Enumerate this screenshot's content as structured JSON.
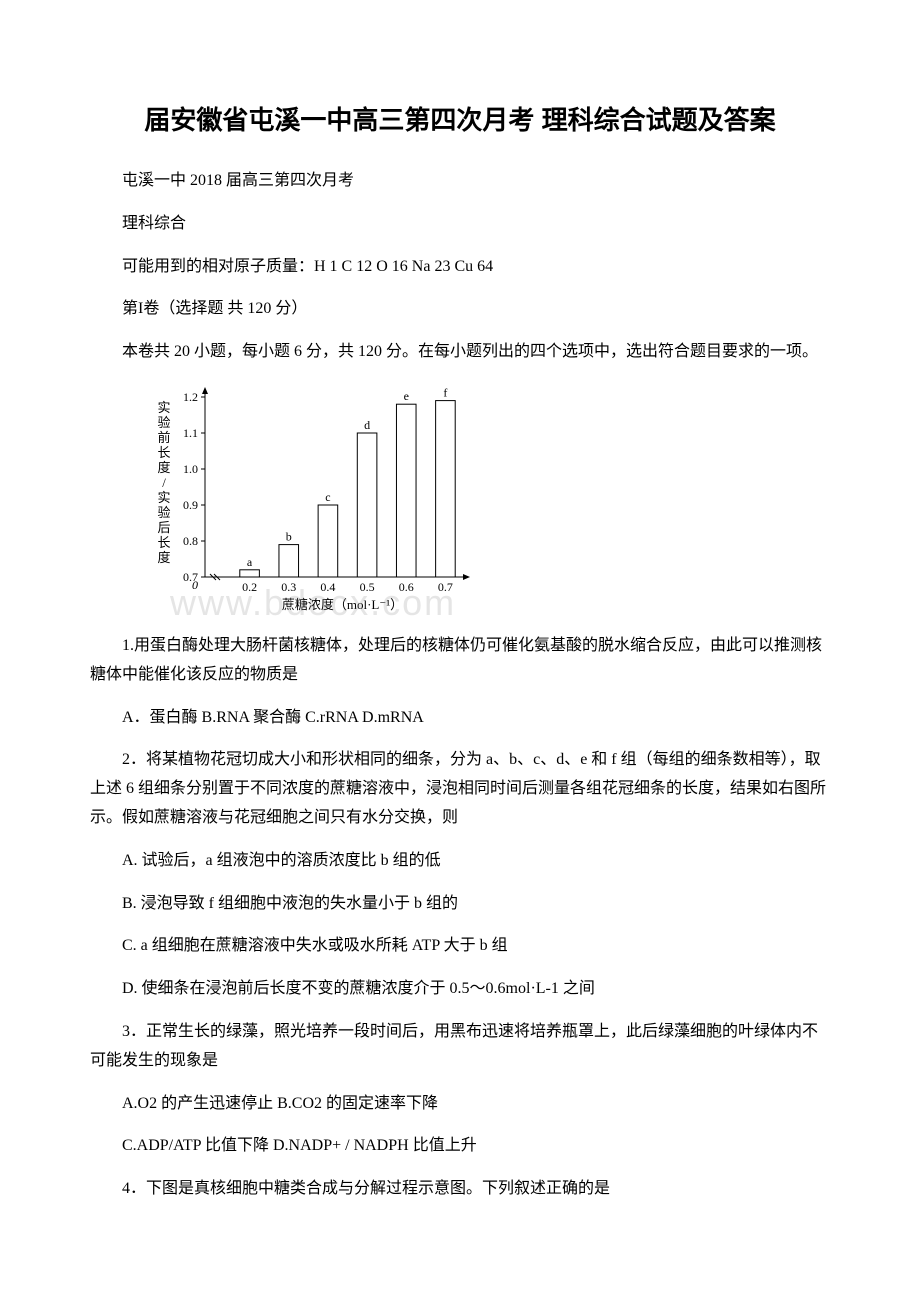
{
  "title": "届安徽省屯溪一中高三第四次月考 理科综合试题及答案",
  "header": {
    "line1": "屯溪一中 2018 届高三第四次月考",
    "line2": "理科综合",
    "line3": "可能用到的相对原子质量：H 1 C 12 O 16 Na 23 Cu 64",
    "line4": "第I卷（选择题 共 120 分）",
    "line5": "本卷共 20 小题，每小题 6 分，共 120 分。在每小题列出的四个选项中，选出符合题目要求的一项。"
  },
  "chart": {
    "type": "bar",
    "categories": [
      "0.2",
      "0.3",
      "0.4",
      "0.5",
      "0.6",
      "0.7"
    ],
    "bar_labels": [
      "a",
      "b",
      "c",
      "d",
      "e",
      "f"
    ],
    "values": [
      0.72,
      0.79,
      0.9,
      1.1,
      1.18,
      1.19
    ],
    "ylim": [
      0.7,
      1.2
    ],
    "ytick_step": 0.1,
    "yticks": [
      "0.7",
      "0.8",
      "0.9",
      "1.0",
      "1.1",
      "1.2"
    ],
    "ylabel": "实验前长度/实验后长度",
    "xlabel": "蔗糖浓度（mol·L⁻¹）",
    "bar_fill": "#ffffff",
    "bar_stroke": "#000000",
    "axis_color": "#000000",
    "background_color": "#ffffff",
    "bar_width": 0.5,
    "font_size": 12,
    "axis_break": true
  },
  "watermark": "www.bdocx.com",
  "questions": {
    "q1": {
      "stem": "1.用蛋白酶处理大肠杆菌核糖体，处理后的核糖体仍可催化氨基酸的脱水缩合反应，由此可以推测核糖体中能催化该反应的物质是",
      "options": "A．蛋白酶 B.RNA 聚合酶 C.rRNA D.mRNA"
    },
    "q2": {
      "stem": "2．将某植物花冠切成大小和形状相同的细条，分为 a、b、c、d、e 和 f 组（每组的细条数相等），取上述 6 组细条分别置于不同浓度的蔗糖溶液中，浸泡相同时间后测量各组花冠细条的长度，结果如右图所示。假如蔗糖溶液与花冠细胞之间只有水分交换，则",
      "opt_a": "A. 试验后，a 组液泡中的溶质浓度比 b 组的低",
      "opt_b": "B. 浸泡导致 f 组细胞中液泡的失水量小于 b 组的",
      "opt_c": "C. a 组细胞在蔗糖溶液中失水或吸水所耗 ATP 大于 b 组",
      "opt_d": "D. 使细条在浸泡前后长度不变的蔗糖浓度介于 0.5～0.6mol·L-1 之间"
    },
    "q3": {
      "stem": "3．正常生长的绿藻，照光培养一段时间后，用黑布迅速将培养瓶罩上，此后绿藻细胞的叶绿体内不可能发生的现象是",
      "opt_ab": "A.O2 的产生迅速停止 B.CO2 的固定速率下降",
      "opt_cd": "C.ADP/ATP 比值下降 D.NADP+ / NADPH 比值上升"
    },
    "q4": {
      "stem": "4．下图是真核细胞中糖类合成与分解过程示意图。下列叙述正确的是"
    }
  }
}
